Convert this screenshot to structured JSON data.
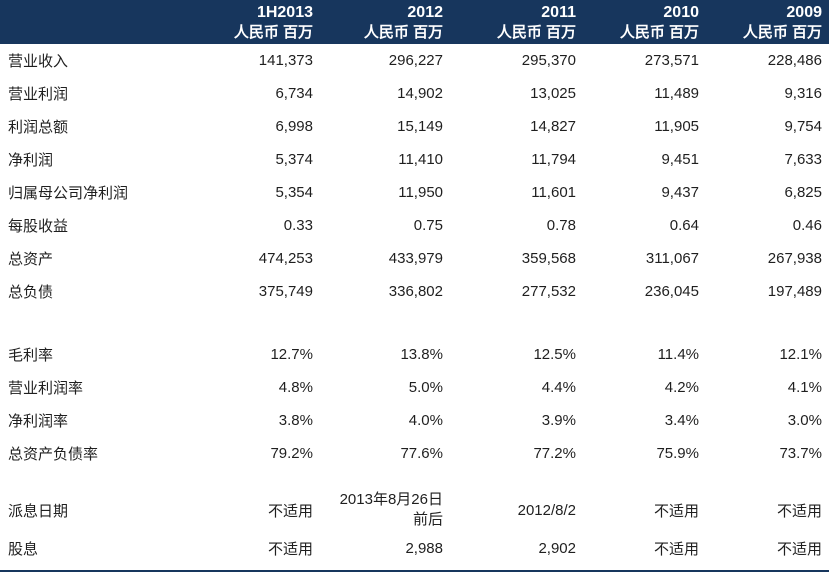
{
  "colors": {
    "header_bg": "#17365D",
    "header_text": "#FFFFFF",
    "body_text": "#1F1F1F",
    "row_bg": "#FFFFFF",
    "border": "#17365D"
  },
  "table": {
    "columns": [
      {
        "year": "1H2013",
        "unit": "人民币 百万"
      },
      {
        "year": "2012",
        "unit": "人民币 百万"
      },
      {
        "year": "2011",
        "unit": "人民币 百万"
      },
      {
        "year": "2010",
        "unit": "人民币 百万"
      },
      {
        "year": "2009",
        "unit": "人民币 百万"
      }
    ],
    "sections": [
      {
        "name": "absolute-figures",
        "rows": [
          {
            "label": "营业收入",
            "values": [
              "141,373",
              "296,227",
              "295,370",
              "273,571",
              "228,486"
            ]
          },
          {
            "label": "营业利润",
            "values": [
              "6,734",
              "14,902",
              "13,025",
              "11,489",
              "9,316"
            ]
          },
          {
            "label": "利润总额",
            "values": [
              "6,998",
              "15,149",
              "14,827",
              "11,905",
              "9,754"
            ]
          },
          {
            "label": "净利润",
            "values": [
              "5,374",
              "11,410",
              "11,794",
              "9,451",
              "7,633"
            ]
          },
          {
            "label": "归属母公司净利润",
            "values": [
              "5,354",
              "11,950",
              "11,601",
              "9,437",
              "6,825"
            ]
          },
          {
            "label": "每股收益",
            "values": [
              "0.33",
              "0.75",
              "0.78",
              "0.64",
              "0.46"
            ]
          },
          {
            "label": "总资产",
            "values": [
              "474,253",
              "433,979",
              "359,568",
              "311,067",
              "267,938"
            ]
          },
          {
            "label": "总负债",
            "values": [
              "375,749",
              "336,802",
              "277,532",
              "236,045",
              "197,489"
            ]
          }
        ]
      },
      {
        "name": "ratios",
        "rows": [
          {
            "label": "毛利率",
            "values": [
              "12.7%",
              "13.8%",
              "12.5%",
              "11.4%",
              "12.1%"
            ]
          },
          {
            "label": "营业利润率",
            "values": [
              "4.8%",
              "5.0%",
              "4.4%",
              "4.2%",
              "4.1%"
            ]
          },
          {
            "label": "净利润率",
            "values": [
              "3.8%",
              "4.0%",
              "3.9%",
              "3.4%",
              "3.0%"
            ]
          },
          {
            "label": "总资产负债率",
            "values": [
              "79.2%",
              "77.6%",
              "77.2%",
              "75.9%",
              "73.7%"
            ]
          }
        ]
      },
      {
        "name": "dividends",
        "rows": [
          {
            "label": "派息日期",
            "values": [
              "不适用",
              [
                "2013年8月26日",
                "前后"
              ],
              "2012/8/2",
              "不适用",
              "不适用"
            ]
          },
          {
            "label": "股息",
            "values": [
              "不适用",
              "2,988",
              "2,902",
              "不适用",
              "不适用"
            ]
          }
        ]
      }
    ]
  }
}
